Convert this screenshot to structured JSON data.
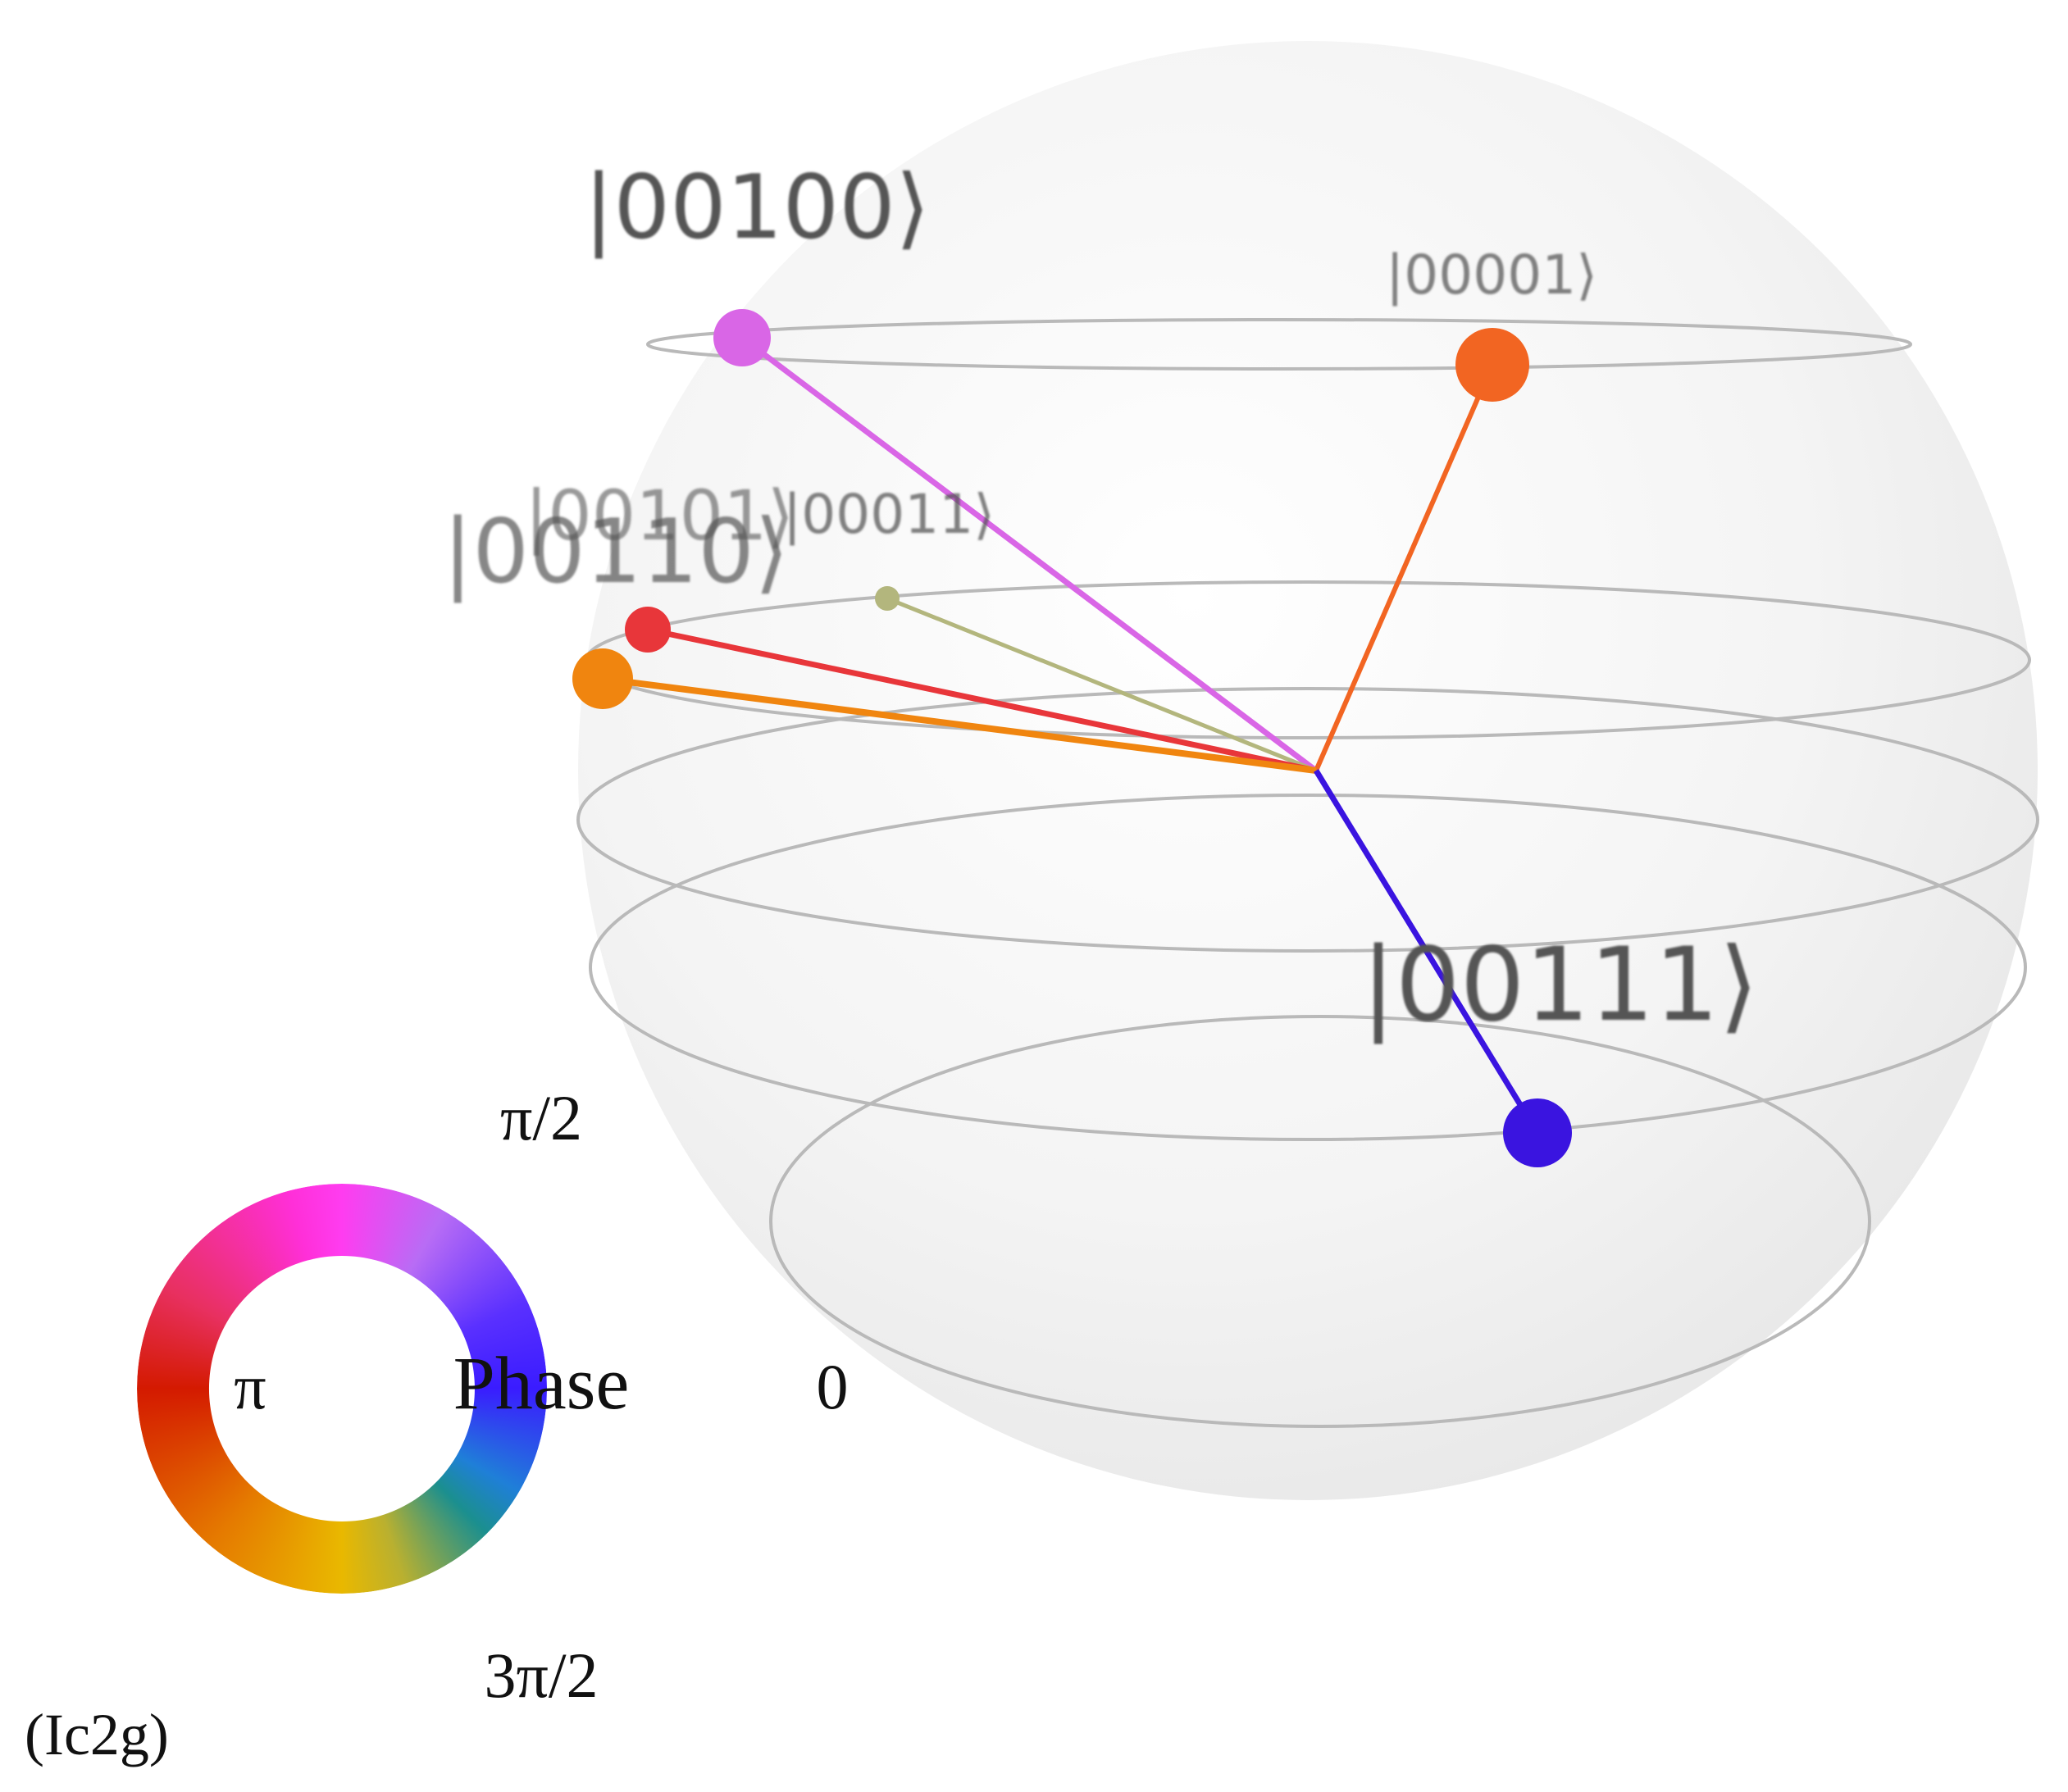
{
  "figure_label": "(Ic2g)",
  "center_color": "#e8e8e8",
  "states": [
    {
      "label": "|00001⟩",
      "color": "#f26522"
    },
    {
      "label": "|00011⟩",
      "color": "#b3b67d"
    },
    {
      "label": "|00100⟩",
      "color": "#d966e6"
    },
    {
      "label": "|00101⟩",
      "color": "#e8363a"
    },
    {
      "label": "|00110⟩",
      "color": "#f0850f"
    },
    {
      "label": "|00111⟩",
      "color": "#3a14e0"
    }
  ],
  "phase_wheel": {
    "title": "Phase",
    "top": "π/2",
    "left": "π",
    "right": "0",
    "bottom": "3π/2"
  }
}
